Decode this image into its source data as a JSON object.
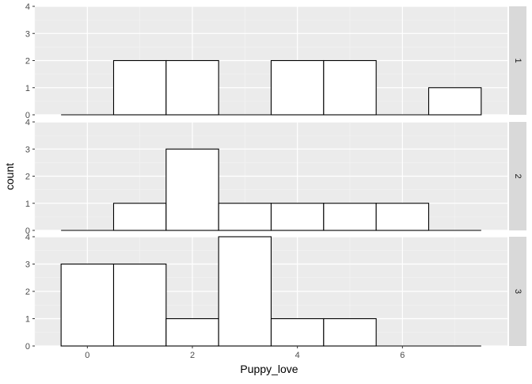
{
  "chart_data": {
    "type": "bar",
    "subtype": "faceted-histogram",
    "xlabel": "Puppy_love",
    "ylabel": "count",
    "x_ticks": [
      0,
      2,
      4,
      6
    ],
    "y_ticks": [
      0,
      1,
      2,
      3,
      4
    ],
    "xlim": [
      -1,
      8
    ],
    "ylim": [
      0,
      4
    ],
    "bin_centers": [
      0,
      1,
      2,
      3,
      4,
      5,
      6,
      7
    ],
    "bin_width": 1,
    "grid": true,
    "panel_background": "#ebebeb",
    "strip_background": "#d9d9d9",
    "bar_fill": "#ffffff",
    "bar_outline": "#000000",
    "facets": [
      {
        "label": "1",
        "counts": [
          0,
          2,
          2,
          0,
          2,
          2,
          0,
          1
        ]
      },
      {
        "label": "2",
        "counts": [
          0,
          1,
          3,
          1,
          1,
          1,
          1,
          0
        ]
      },
      {
        "label": "3",
        "counts": [
          3,
          3,
          1,
          4,
          1,
          1,
          0,
          0
        ]
      }
    ]
  }
}
